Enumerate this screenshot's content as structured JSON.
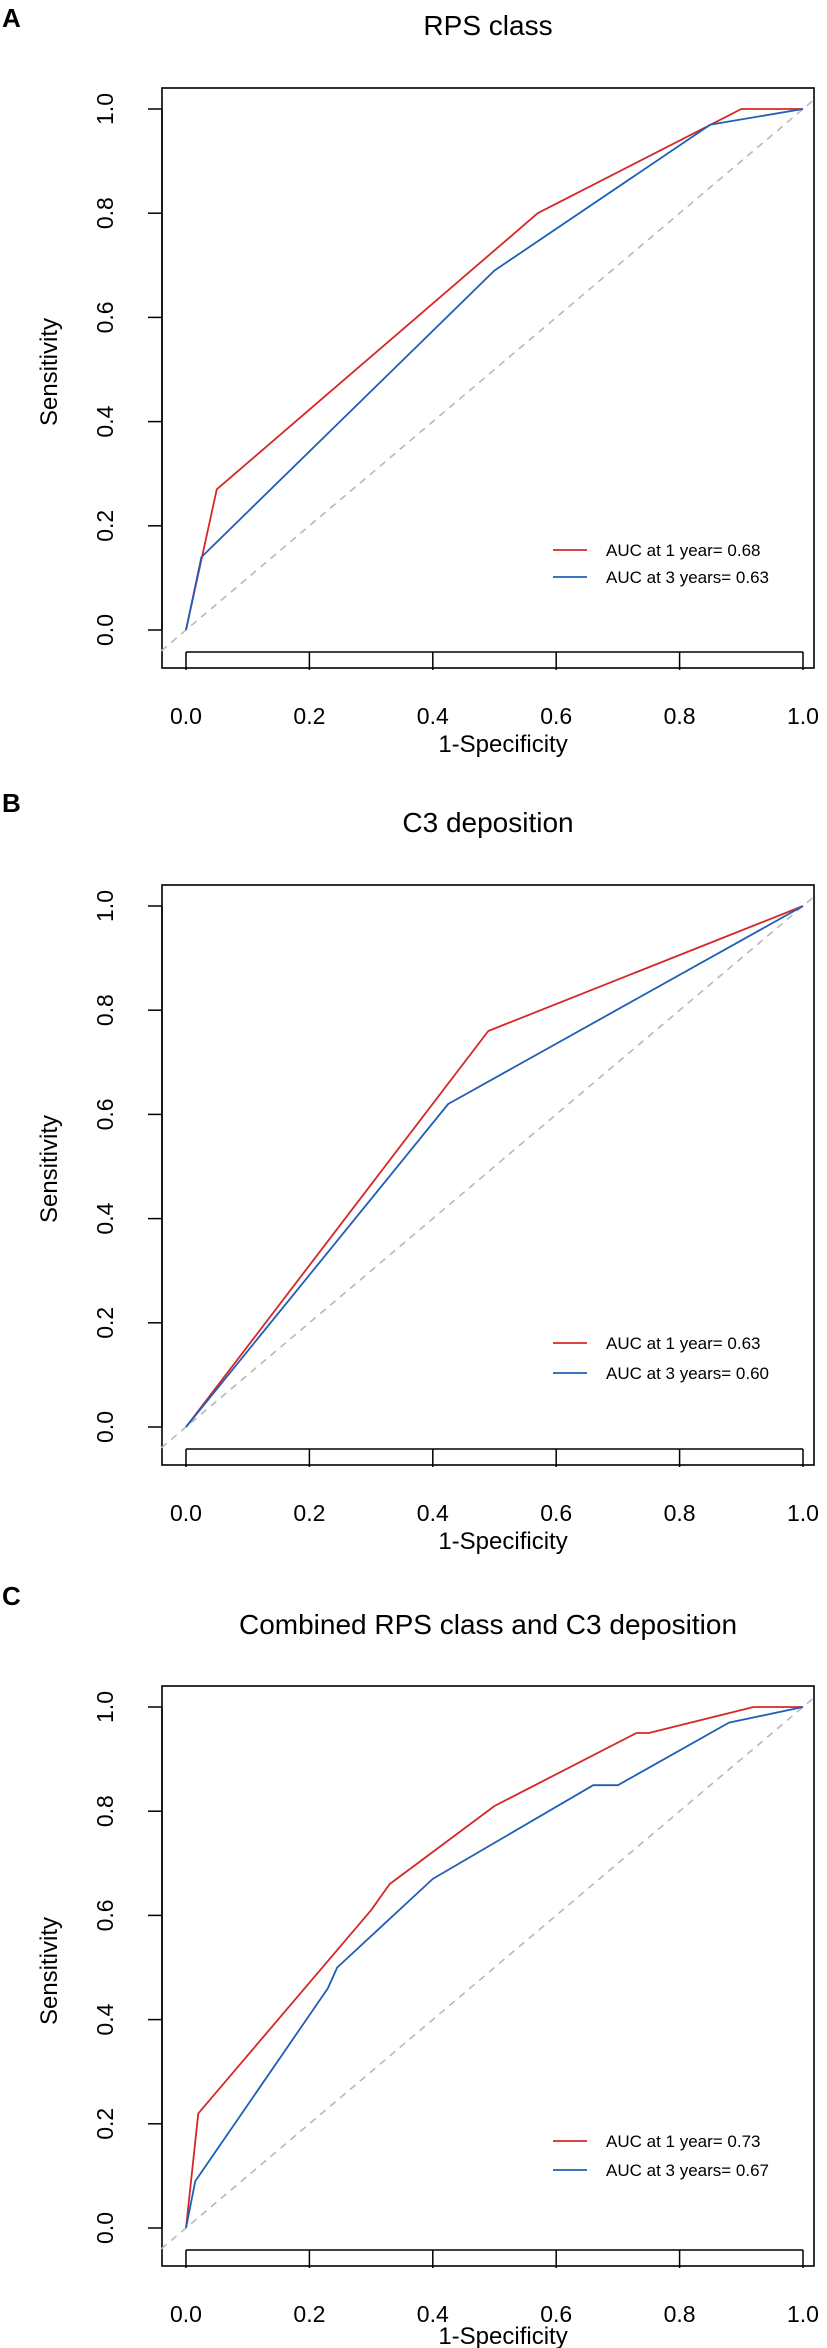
{
  "colors": {
    "red": "#d62728",
    "blue": "#1f5fb5",
    "diag": "#b8b8b8",
    "frame": "#000000"
  },
  "chart_data": [
    {
      "panel": "A",
      "type": "line",
      "title": "RPS class",
      "xlabel": "1-Specificity",
      "ylabel": "Sensitivity",
      "xlim": [
        0,
        1
      ],
      "ylim": [
        0,
        1
      ],
      "xticks": [
        "0.0",
        "0.2",
        "0.4",
        "0.6",
        "0.8",
        "1.0"
      ],
      "yticks": [
        "0.0",
        "0.2",
        "0.4",
        "0.6",
        "0.8",
        "1.0"
      ],
      "reference_line": "diagonal",
      "legend": "bottom-right",
      "series": [
        {
          "name": "AUC at 1 year= 0.68",
          "color": "red",
          "x": [
            0,
            0.05,
            0.57,
            0.9,
            1.0
          ],
          "y": [
            0,
            0.27,
            0.8,
            1.0,
            1.0
          ]
        },
        {
          "name": "AUC at 3 years= 0.63",
          "color": "blue",
          "x": [
            0,
            0.025,
            0.5,
            0.85,
            1.0
          ],
          "y": [
            0,
            0.14,
            0.69,
            0.97,
            1.0
          ]
        }
      ]
    },
    {
      "panel": "B",
      "type": "line",
      "title": "C3 deposition",
      "xlabel": "1-Specificity",
      "ylabel": "Sensitivity",
      "xlim": [
        0,
        1
      ],
      "ylim": [
        0,
        1
      ],
      "xticks": [
        "0.0",
        "0.2",
        "0.4",
        "0.6",
        "0.8",
        "1.0"
      ],
      "yticks": [
        "0.0",
        "0.2",
        "0.4",
        "0.6",
        "0.8",
        "1.0"
      ],
      "reference_line": "diagonal",
      "legend": "bottom-right",
      "series": [
        {
          "name": "AUC at 1 year= 0.63",
          "color": "red",
          "x": [
            0,
            0.49,
            1.0
          ],
          "y": [
            0,
            0.76,
            1.0
          ]
        },
        {
          "name": "AUC at 3 years= 0.60",
          "color": "blue",
          "x": [
            0,
            0.425,
            1.0
          ],
          "y": [
            0,
            0.62,
            1.0
          ]
        }
      ]
    },
    {
      "panel": "C",
      "type": "line",
      "title": "Combined RPS class and C3 deposition",
      "xlabel": "1-Specificity",
      "ylabel": "Sensitivity",
      "xlim": [
        0,
        1
      ],
      "ylim": [
        0,
        1
      ],
      "xticks": [
        "0.0",
        "0.2",
        "0.4",
        "0.6",
        "0.8",
        "1.0"
      ],
      "yticks": [
        "0.0",
        "0.2",
        "0.4",
        "0.6",
        "0.8",
        "1.0"
      ],
      "reference_line": "diagonal",
      "legend": "bottom-right",
      "series": [
        {
          "name": "AUC at 1 year= 0.73",
          "color": "red",
          "x": [
            0,
            0.02,
            0.3,
            0.33,
            0.5,
            0.73,
            0.75,
            0.92,
            1.0
          ],
          "y": [
            0,
            0.22,
            0.61,
            0.66,
            0.81,
            0.95,
            0.95,
            1.0,
            1.0
          ]
        },
        {
          "name": "AUC at 3 years= 0.67",
          "color": "blue",
          "x": [
            0,
            0.015,
            0.23,
            0.245,
            0.4,
            0.66,
            0.7,
            0.88,
            1.0
          ],
          "y": [
            0,
            0.09,
            0.46,
            0.5,
            0.67,
            0.85,
            0.85,
            0.97,
            1.0
          ]
        }
      ]
    }
  ]
}
